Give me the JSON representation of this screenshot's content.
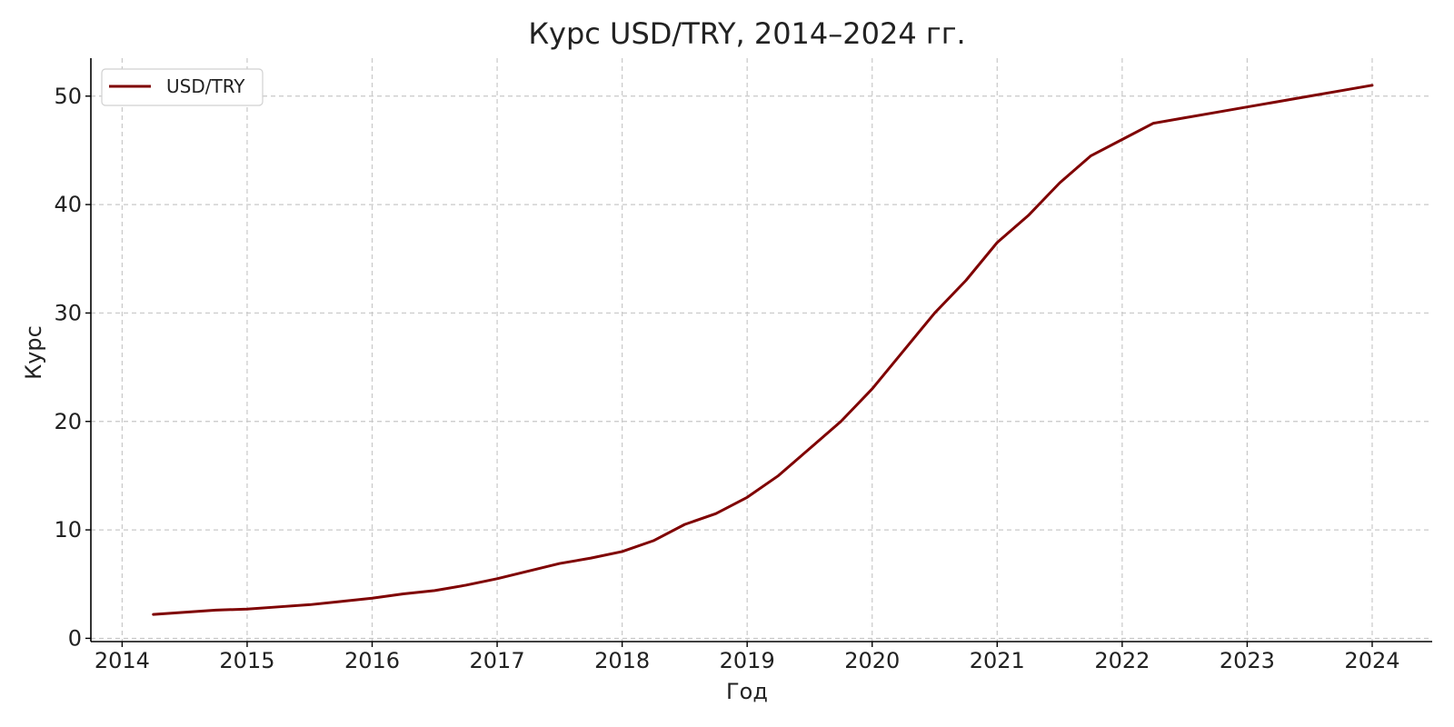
{
  "chart_data": {
    "type": "line",
    "title": "Курс USD/TRY, 2014–2024 гг.",
    "xlabel": "Год",
    "ylabel": "Курс",
    "xlim": [
      2013.75,
      2024.48
    ],
    "ylim": [
      -0.3,
      53.5
    ],
    "xticks": [
      2014,
      2015,
      2016,
      2017,
      2018,
      2019,
      2020,
      2021,
      2022,
      2023,
      2024
    ],
    "yticks": [
      0,
      10,
      20,
      30,
      40,
      50
    ],
    "grid": true,
    "legend": "top-left",
    "series": [
      {
        "name": "USD/TRY",
        "color": "#7f0000",
        "x": [
          2014.25,
          2014.5,
          2014.75,
          2015.0,
          2015.25,
          2015.5,
          2015.75,
          2016.0,
          2016.25,
          2016.5,
          2016.75,
          2017.0,
          2017.25,
          2017.5,
          2017.75,
          2018.0,
          2018.25,
          2018.5,
          2018.75,
          2019.0,
          2019.25,
          2019.5,
          2019.75,
          2020.0,
          2020.25,
          2020.5,
          2020.75,
          2021.0,
          2021.25,
          2021.5,
          2021.75,
          2022.0,
          2022.25,
          2022.5,
          2022.75,
          2023.0,
          2023.25,
          2023.5,
          2023.75,
          2024.0
        ],
        "values": [
          2.2,
          2.4,
          2.6,
          2.7,
          2.9,
          3.1,
          3.4,
          3.7,
          4.1,
          4.4,
          4.9,
          5.5,
          6.2,
          6.9,
          7.4,
          8.0,
          9.0,
          10.5,
          11.5,
          13.0,
          15.0,
          17.5,
          20.0,
          23.0,
          26.5,
          30.0,
          33.0,
          36.5,
          39.0,
          42.0,
          44.5,
          46.0,
          47.5,
          48.0,
          48.5,
          49.0,
          49.5,
          50.0,
          50.5,
          51.0
        ]
      }
    ]
  }
}
